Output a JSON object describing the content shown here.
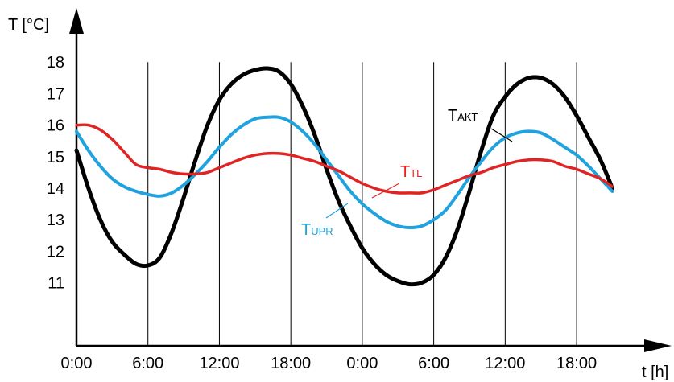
{
  "chart_data": {
    "type": "line",
    "ylabel": "T [°C]",
    "xlabel": "t [h]",
    "x_tick_labels": [
      "0:00",
      "6:00",
      "12:00",
      "18:00",
      "0:00",
      "6:00",
      "12:00",
      "18:00"
    ],
    "x_ticks_hours": [
      0,
      6,
      12,
      18,
      24,
      30,
      36,
      42
    ],
    "y_ticks": [
      11,
      12,
      13,
      14,
      15,
      16,
      17,
      18
    ],
    "xlim": [
      0,
      47
    ],
    "ylim": [
      9.0,
      19.0
    ],
    "grid": "vertical",
    "series": [
      {
        "name": "TAKT",
        "label_main": "T",
        "label_sub": "AKT",
        "color": "#000000",
        "points": [
          [
            0,
            15.2
          ],
          [
            1,
            14.0
          ],
          [
            2,
            13.0
          ],
          [
            3,
            12.3
          ],
          [
            4,
            11.9
          ],
          [
            5,
            11.6
          ],
          [
            6,
            11.55
          ],
          [
            7,
            11.8
          ],
          [
            8,
            12.6
          ],
          [
            9,
            13.7
          ],
          [
            10,
            14.9
          ],
          [
            11,
            16.0
          ],
          [
            12,
            16.8
          ],
          [
            13,
            17.3
          ],
          [
            14,
            17.6
          ],
          [
            15,
            17.75
          ],
          [
            16,
            17.8
          ],
          [
            17,
            17.7
          ],
          [
            18,
            17.3
          ],
          [
            19,
            16.6
          ],
          [
            20,
            15.7
          ],
          [
            21,
            14.6
          ],
          [
            22,
            13.6
          ],
          [
            23,
            12.8
          ],
          [
            24,
            12.1
          ],
          [
            25,
            11.6
          ],
          [
            26,
            11.25
          ],
          [
            27,
            11.05
          ],
          [
            28,
            10.95
          ],
          [
            29,
            11.0
          ],
          [
            30,
            11.25
          ],
          [
            31,
            11.8
          ],
          [
            32,
            12.7
          ],
          [
            33,
            13.9
          ],
          [
            34,
            15.2
          ],
          [
            35,
            16.3
          ],
          [
            36,
            16.9
          ],
          [
            37,
            17.3
          ],
          [
            38,
            17.5
          ],
          [
            39,
            17.5
          ],
          [
            40,
            17.3
          ],
          [
            41,
            16.9
          ],
          [
            42,
            16.3
          ],
          [
            43,
            15.6
          ],
          [
            44,
            14.9
          ],
          [
            45,
            14.0
          ]
        ]
      },
      {
        "name": "TUPR",
        "label_main": "T",
        "label_sub": "UPR",
        "color": "#1FA2DE",
        "points": [
          [
            0,
            15.8
          ],
          [
            1,
            15.2
          ],
          [
            2,
            14.7
          ],
          [
            3,
            14.3
          ],
          [
            4,
            14.05
          ],
          [
            5,
            13.9
          ],
          [
            6,
            13.8
          ],
          [
            7,
            13.75
          ],
          [
            8,
            13.85
          ],
          [
            9,
            14.1
          ],
          [
            10,
            14.45
          ],
          [
            11,
            14.85
          ],
          [
            12,
            15.3
          ],
          [
            13,
            15.7
          ],
          [
            14,
            16.0
          ],
          [
            15,
            16.2
          ],
          [
            16,
            16.25
          ],
          [
            17,
            16.25
          ],
          [
            18,
            16.1
          ],
          [
            19,
            15.8
          ],
          [
            20,
            15.4
          ],
          [
            21,
            14.9
          ],
          [
            22,
            14.4
          ],
          [
            23,
            13.9
          ],
          [
            24,
            13.5
          ],
          [
            25,
            13.2
          ],
          [
            26,
            12.95
          ],
          [
            27,
            12.8
          ],
          [
            28,
            12.75
          ],
          [
            29,
            12.8
          ],
          [
            30,
            13.0
          ],
          [
            31,
            13.3
          ],
          [
            32,
            13.8
          ],
          [
            33,
            14.35
          ],
          [
            34,
            14.85
          ],
          [
            35,
            15.3
          ],
          [
            36,
            15.6
          ],
          [
            37,
            15.75
          ],
          [
            38,
            15.8
          ],
          [
            39,
            15.75
          ],
          [
            40,
            15.55
          ],
          [
            41,
            15.3
          ],
          [
            42,
            15.05
          ],
          [
            43,
            14.7
          ],
          [
            44,
            14.3
          ],
          [
            45,
            13.9
          ]
        ]
      },
      {
        "name": "TTL",
        "label_main": "T",
        "label_sub": "TL",
        "color": "#E02424",
        "points": [
          [
            0,
            16.0
          ],
          [
            1,
            16.0
          ],
          [
            2,
            15.85
          ],
          [
            3,
            15.55
          ],
          [
            4,
            15.15
          ],
          [
            5,
            14.75
          ],
          [
            6,
            14.65
          ],
          [
            7,
            14.6
          ],
          [
            8,
            14.5
          ],
          [
            9,
            14.45
          ],
          [
            10,
            14.45
          ],
          [
            11,
            14.5
          ],
          [
            12,
            14.65
          ],
          [
            13,
            14.8
          ],
          [
            14,
            14.95
          ],
          [
            15,
            15.05
          ],
          [
            16,
            15.1
          ],
          [
            17,
            15.1
          ],
          [
            18,
            15.05
          ],
          [
            19,
            14.95
          ],
          [
            20,
            14.85
          ],
          [
            21,
            14.7
          ],
          [
            22,
            14.55
          ],
          [
            23,
            14.35
          ],
          [
            24,
            14.15
          ],
          [
            25,
            14.0
          ],
          [
            26,
            13.9
          ],
          [
            27,
            13.85
          ],
          [
            28,
            13.85
          ],
          [
            29,
            13.85
          ],
          [
            30,
            13.95
          ],
          [
            31,
            14.1
          ],
          [
            32,
            14.25
          ],
          [
            33,
            14.4
          ],
          [
            34,
            14.5
          ],
          [
            35,
            14.65
          ],
          [
            36,
            14.75
          ],
          [
            37,
            14.85
          ],
          [
            38,
            14.9
          ],
          [
            39,
            14.9
          ],
          [
            40,
            14.85
          ],
          [
            41,
            14.7
          ],
          [
            42,
            14.6
          ],
          [
            43,
            14.45
          ],
          [
            44,
            14.3
          ],
          [
            45,
            14.05
          ]
        ]
      }
    ]
  }
}
